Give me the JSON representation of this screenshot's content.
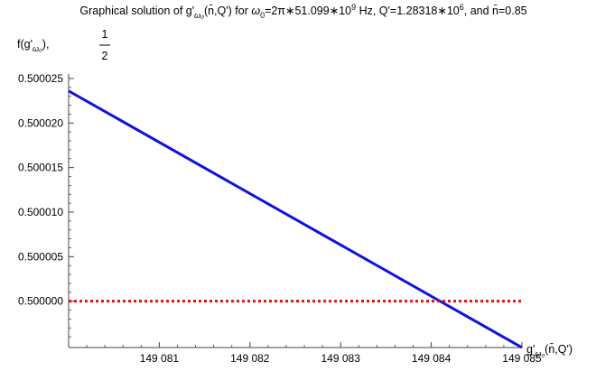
{
  "chart_data": {
    "type": "line",
    "title": {
      "prefix": "Graphical solution of g'",
      "sub": "ω₀",
      "args": "(n̄,Q') for ",
      "omega": "ω",
      "omega_sub": "0",
      "mid": "=2π∗51.099∗10",
      "sup1": "9",
      "mid2": " Hz, Q'=1.28318∗10",
      "sup2": "6",
      "tail": ", and n̄=0.85"
    },
    "ylabel": {
      "text": "f(g'",
      "sub": "ω₀",
      "close": "),",
      "frac_num": "1",
      "frac_den": "2"
    },
    "xlabel": {
      "text": "g'",
      "sub": "ω₀",
      "args": "(n̄,Q')"
    },
    "xlim": [
      149080.0,
      149085.0
    ],
    "ylim": [
      0.4999948,
      0.5000255
    ],
    "x_ticks": [
      149081,
      149082,
      149083,
      149084,
      149085
    ],
    "x_tick_labels": [
      "149 081",
      "149 082",
      "149 083",
      "149 084",
      "149 085"
    ],
    "y_ticks": [
      0.5,
      0.500005,
      0.50001,
      0.500015,
      0.50002,
      0.500025
    ],
    "y_tick_labels": [
      "0.500000",
      "0.500005",
      "0.500010",
      "0.500015",
      "0.500020",
      "0.500025"
    ],
    "grid": false,
    "series": [
      {
        "color": "#1010e0",
        "style": "solid",
        "x": [
          149080.0,
          149085.0
        ],
        "y": [
          0.5000236,
          0.4999948
        ]
      },
      {
        "color": "#e01010",
        "style": "dotted",
        "x": [
          149080.0,
          149085.0
        ],
        "y": [
          0.5,
          0.5
        ]
      }
    ]
  }
}
